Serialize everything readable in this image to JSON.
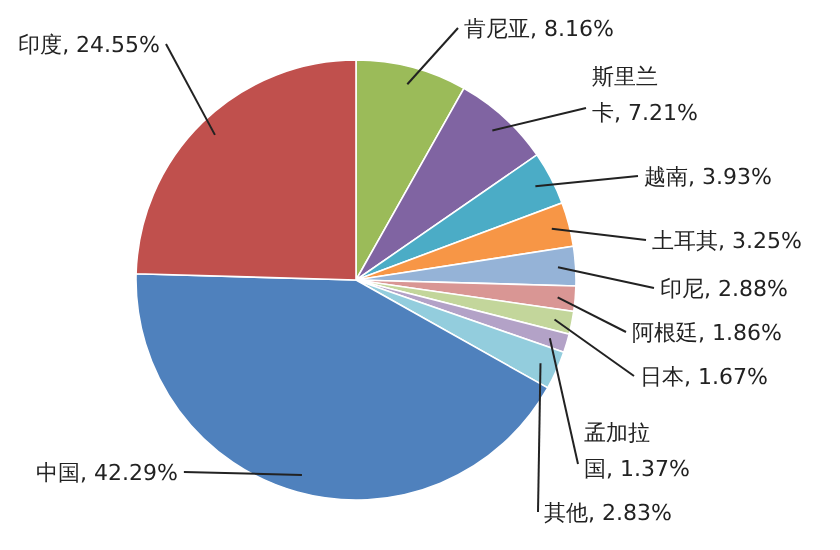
{
  "chart_data": {
    "type": "pie",
    "categories": [
      "肯尼亚",
      "斯里兰卡",
      "越南",
      "土耳其",
      "印尼",
      "阿根廷",
      "日本",
      "孟加拉国",
      "其他",
      "中国",
      "印度"
    ],
    "values": [
      8.16,
      7.21,
      3.93,
      3.25,
      2.88,
      1.86,
      1.67,
      1.37,
      2.83,
      42.29,
      24.55
    ],
    "colors": [
      "#9bbb59",
      "#8064a2",
      "#4bacc6",
      "#f79646",
      "#95b3d7",
      "#d99694",
      "#c3d69b",
      "#b3a2c7",
      "#93cddd",
      "#4f81bd",
      "#c0504d"
    ],
    "value_labels": [
      "8.16%",
      "7.21%",
      "3.93%",
      "3.25%",
      "2.88%",
      "1.86%",
      "1.67%",
      "1.37%",
      "2.83%",
      "42.29%",
      "24.55%"
    ]
  }
}
